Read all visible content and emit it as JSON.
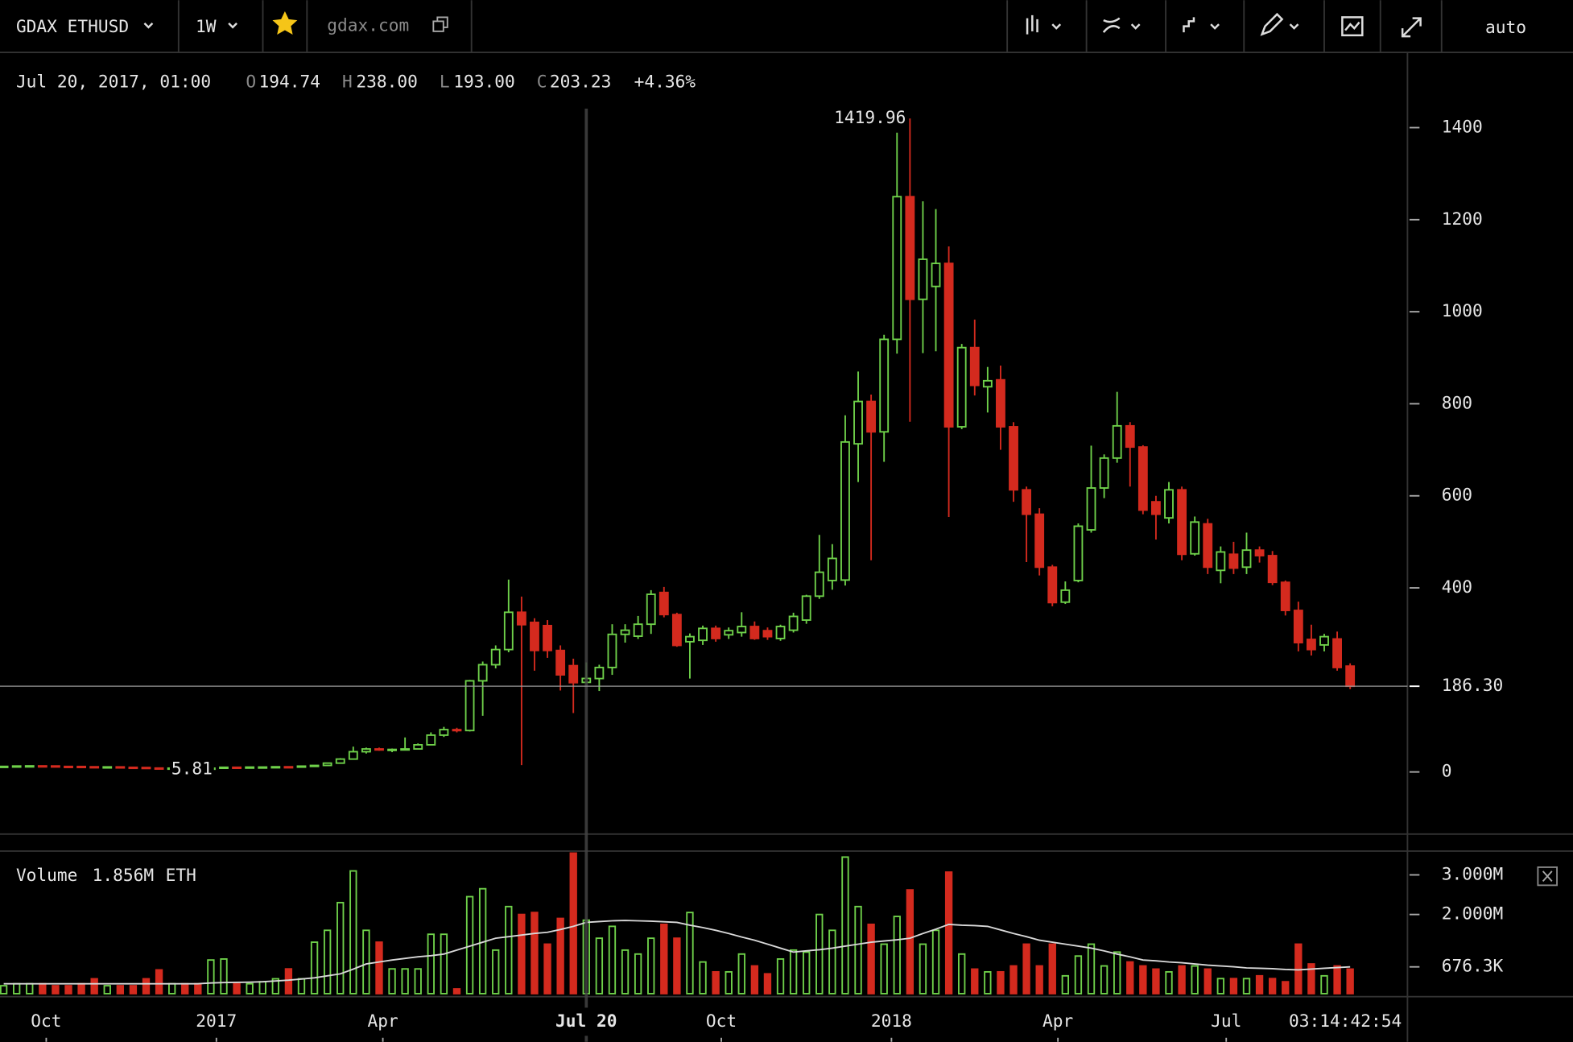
{
  "toolbar": {
    "symbol": "GDAX ETHUSD",
    "interval": "1W",
    "source": "gdax.com",
    "scale_mode": "auto"
  },
  "header": {
    "date": "Jul 20, 2017, 01:00",
    "open_key": "O",
    "open": "194.74",
    "high_key": "H",
    "high": "238.00",
    "low_key": "L",
    "low": "193.00",
    "close_key": "C",
    "close": "203.23",
    "change": "+4.36%"
  },
  "time_axis": {
    "countdown": "03:14:42:54"
  },
  "chart_data": [
    {
      "type": "candlestick",
      "up_color": "#6fd14a",
      "down_color": "#d42a1e",
      "x": [
        "2016-09-08",
        "2016-09-15",
        "2016-09-22",
        "2016-09-29",
        "2016-10-06",
        "2016-10-13",
        "2016-10-20",
        "2016-10-27",
        "2016-11-03",
        "2016-11-10",
        "2016-11-17",
        "2016-11-24",
        "2016-12-01",
        "2016-12-08",
        "2016-12-15",
        "2016-12-22",
        "2016-12-29",
        "2017-01-05",
        "2017-01-12",
        "2017-01-19",
        "2017-01-26",
        "2017-02-02",
        "2017-02-09",
        "2017-02-16",
        "2017-02-23",
        "2017-03-02",
        "2017-03-09",
        "2017-03-16",
        "2017-03-23",
        "2017-03-30",
        "2017-04-06",
        "2017-04-13",
        "2017-04-20",
        "2017-04-27",
        "2017-05-04",
        "2017-05-11",
        "2017-05-18",
        "2017-05-25",
        "2017-06-01",
        "2017-06-08",
        "2017-06-15",
        "2017-06-22",
        "2017-06-29",
        "2017-07-06",
        "2017-07-13",
        "2017-07-20",
        "2017-07-27",
        "2017-08-03",
        "2017-08-10",
        "2017-08-17",
        "2017-08-24",
        "2017-08-31",
        "2017-09-07",
        "2017-09-14",
        "2017-09-21",
        "2017-09-28",
        "2017-10-05",
        "2017-10-12",
        "2017-10-19",
        "2017-10-26",
        "2017-11-02",
        "2017-11-09",
        "2017-11-16",
        "2017-11-23",
        "2017-11-30",
        "2017-12-07",
        "2017-12-14",
        "2017-12-21",
        "2017-12-28",
        "2018-01-04",
        "2018-01-11",
        "2018-01-18",
        "2018-01-25",
        "2018-02-01",
        "2018-02-08",
        "2018-02-15",
        "2018-02-22",
        "2018-03-01",
        "2018-03-08",
        "2018-03-15",
        "2018-03-22",
        "2018-03-29",
        "2018-04-05",
        "2018-04-12",
        "2018-04-19",
        "2018-04-26",
        "2018-05-03",
        "2018-05-10",
        "2018-05-17",
        "2018-05-24",
        "2018-05-31",
        "2018-06-07",
        "2018-06-14",
        "2018-06-21",
        "2018-06-28",
        "2018-07-05",
        "2018-07-12",
        "2018-07-19",
        "2018-07-26",
        "2018-08-02",
        "2018-08-09",
        "2018-08-16",
        "2018-08-23",
        "2018-08-30",
        "2018-09-06"
      ],
      "open": [
        11.9,
        12.1,
        12.9,
        13.2,
        13.0,
        12.0,
        11.9,
        11.3,
        10.8,
        11.0,
        10.1,
        9.7,
        8.5,
        7.8,
        8.3,
        7.4,
        7.2,
        8.2,
        10.2,
        9.8,
        10.6,
        10.7,
        11.3,
        11.0,
        12.7,
        14.2,
        19.2,
        28,
        44,
        50,
        48,
        49,
        50,
        59,
        80,
        92,
        90,
        198,
        233,
        266,
        347,
        325,
        318,
        264,
        231,
        194.74,
        203,
        227,
        299,
        295,
        321,
        390,
        342,
        283,
        286,
        312,
        298,
        303,
        316,
        307,
        290,
        308,
        330,
        382,
        416,
        417,
        713,
        805,
        739,
        940,
        1250,
        1027,
        1055,
        1105,
        750,
        922,
        837,
        852,
        750,
        613,
        560,
        445,
        369,
        416,
        526,
        617,
        682,
        752,
        706,
        587,
        552,
        613,
        474,
        539,
        438,
        473,
        445,
        482,
        470,
        412,
        351,
        288,
        276,
        289,
        230
      ],
      "high": [
        12.3,
        13.0,
        13.5,
        13.4,
        13.1,
        12.1,
        12.0,
        11.4,
        11.2,
        11.1,
        10.2,
        9.8,
        8.6,
        8.5,
        8.4,
        7.6,
        8.4,
        11.0,
        10.3,
        10.9,
        10.8,
        11.5,
        11.4,
        13.0,
        14.5,
        19.8,
        30,
        55,
        53,
        53,
        51,
        75,
        62,
        86,
        98,
        96,
        200,
        240,
        275,
        418,
        381,
        334,
        330,
        275,
        246,
        238,
        233,
        321,
        321,
        339,
        395,
        402,
        346,
        301,
        318,
        318,
        314,
        347,
        327,
        314,
        320,
        346,
        385,
        515,
        495,
        775,
        870,
        820,
        950,
        1389,
        1419.96,
        1240,
        1223,
        1142,
        930,
        983,
        880,
        883,
        760,
        620,
        573,
        450,
        414,
        540,
        709,
        690,
        826,
        760,
        710,
        600,
        630,
        620,
        555,
        550,
        490,
        500,
        520,
        490,
        480,
        416,
        370,
        320,
        300,
        305,
        236
      ],
      "low": [
        11.5,
        12.0,
        12.6,
        12.8,
        11.8,
        11.7,
        11.0,
        10.5,
        10.5,
        9.9,
        9.5,
        8.2,
        7.3,
        7.5,
        7.2,
        5.81,
        7.0,
        8.0,
        9.6,
        9.7,
        10.4,
        10.6,
        10.8,
        10.9,
        12.5,
        14.0,
        18.8,
        27,
        40,
        46,
        43,
        47,
        49,
        58,
        76,
        86,
        88,
        122,
        225,
        260,
        15,
        220,
        248,
        177,
        128,
        193,
        176,
        211,
        281,
        289,
        300,
        336,
        272,
        203,
        276,
        283,
        289,
        294,
        287,
        287,
        285,
        303,
        322,
        376,
        396,
        405,
        630,
        460,
        674,
        909,
        761,
        910,
        914,
        554,
        745,
        818,
        781,
        700,
        587,
        456,
        427,
        360,
        365,
        412,
        520,
        595,
        672,
        620,
        560,
        505,
        540,
        460,
        470,
        430,
        410,
        430,
        430,
        455,
        406,
        340,
        262,
        253,
        262,
        220,
        180
      ],
      "close": [
        12.1,
        12.9,
        13.2,
        13.0,
        12.0,
        11.9,
        11.3,
        10.9,
        11.0,
        10.1,
        9.7,
        8.5,
        7.8,
        8.3,
        7.4,
        7.2,
        8.2,
        10.2,
        9.8,
        10.6,
        10.7,
        11.3,
        11.0,
        12.7,
        14.2,
        19.2,
        28,
        44,
        50,
        48,
        49,
        50,
        59,
        80,
        92,
        90,
        198,
        233,
        266,
        347,
        320,
        264,
        264,
        211,
        194,
        203.23,
        227,
        299,
        308,
        321,
        386,
        342,
        275,
        294,
        312,
        290,
        307,
        316,
        290,
        294,
        316,
        338,
        382,
        434,
        464,
        717,
        805,
        739,
        940,
        1250,
        1027,
        1114,
        1105,
        750,
        922,
        840,
        850,
        750,
        613,
        560,
        445,
        368,
        395,
        534,
        617,
        682,
        752,
        706,
        569,
        560,
        613,
        473,
        543,
        445,
        478,
        443,
        482,
        470,
        412,
        351,
        281,
        266,
        294,
        227,
        186.3
      ],
      "xlim": [
        "2016-09-06",
        "2018-10-07"
      ],
      "xticks": [
        {
          "value": "2016-10-01",
          "label": "Oct"
        },
        {
          "value": "2017-01-01",
          "label": "2017"
        },
        {
          "value": "2017-04-01",
          "label": "Apr"
        },
        {
          "value": "2017-10-01",
          "label": "Oct"
        },
        {
          "value": "2018-01-01",
          "label": "2018"
        },
        {
          "value": "2018-04-01",
          "label": "Apr"
        },
        {
          "value": "2018-07-01",
          "label": "Jul"
        }
      ],
      "ylim": [
        -135,
        1557
      ],
      "yticks": [
        0,
        400,
        600,
        800,
        1000,
        1200,
        1400
      ],
      "crosshair": {
        "x": "2017-07-20",
        "x_label": "Jul 20",
        "y": {
          "value": 186.3,
          "label": "186.30"
        }
      }
    },
    {
      "type": "bar",
      "title": "Volume",
      "current": "1.856M",
      "unit": "ETH",
      "ma_color": "#d8d8d8",
      "values": [
        200000,
        250000,
        250000,
        250000,
        200000,
        200000,
        250000,
        375000,
        200000,
        200000,
        200000,
        375000,
        600000,
        250000,
        250000,
        250000,
        850000,
        875000,
        250000,
        250000,
        300000,
        375000,
        625000,
        375000,
        1300000,
        1600000,
        2300000,
        3100000,
        1600000,
        1300000,
        625000,
        625000,
        625000,
        1500000,
        1500000,
        120000,
        2450000,
        2650000,
        1100000,
        2200000,
        2000000,
        2050000,
        1250000,
        1900000,
        3550000,
        1856000,
        1400000,
        1700000,
        1100000,
        1000000,
        1400000,
        1750000,
        1400000,
        2050000,
        800000,
        550000,
        550000,
        1000000,
        700000,
        500000,
        875000,
        1100000,
        1050000,
        2000000,
        1600000,
        3450000,
        2200000,
        1750000,
        1250000,
        1950000,
        2620000,
        1250000,
        1600000,
        3070000,
        1000000,
        620000,
        550000,
        550000,
        700000,
        1250000,
        700000,
        1250000,
        450000,
        950000,
        1250000,
        700000,
        1050000,
        800000,
        700000,
        620000,
        550000,
        700000,
        700000,
        620000,
        380000,
        380000,
        380000,
        450000,
        380000,
        300000,
        1250000,
        750000,
        450000,
        700000,
        620000
      ],
      "volume_ma": [
        250000,
        250000,
        250000,
        250000,
        250000,
        250000,
        250000,
        250000,
        250000,
        250000,
        250000,
        250000,
        250000,
        250000,
        250000,
        250000,
        270000,
        280000,
        285000,
        290000,
        300000,
        320000,
        340000,
        370000,
        400000,
        450000,
        500000,
        620000,
        750000,
        800000,
        850000,
        890000,
        930000,
        960000,
        1000000,
        1100000,
        1200000,
        1300000,
        1400000,
        1440000,
        1480000,
        1520000,
        1550000,
        1620000,
        1700000,
        1800000,
        1820000,
        1840000,
        1850000,
        1840000,
        1830000,
        1815000,
        1800000,
        1730000,
        1670000,
        1600000,
        1520000,
        1430000,
        1350000,
        1250000,
        1150000,
        1050000,
        1080000,
        1110000,
        1150000,
        1200000,
        1250000,
        1300000,
        1330000,
        1360000,
        1400000,
        1520000,
        1630000,
        1750000,
        1730000,
        1720000,
        1700000,
        1610000,
        1520000,
        1440000,
        1350000,
        1300000,
        1250000,
        1200000,
        1150000,
        1080000,
        1000000,
        930000,
        850000,
        830000,
        800000,
        780000,
        750000,
        720000,
        700000,
        680000,
        650000,
        640000,
        630000,
        610000,
        600000,
        620000,
        640000,
        660000,
        676300
      ],
      "ma_label": {
        "value": 676300,
        "label": "676.3K"
      },
      "ylim": [
        0,
        3600000
      ],
      "yticks": [
        {
          "value": 3000000,
          "label": "3.000M"
        },
        {
          "value": 2000000,
          "label": "2.000M"
        }
      ]
    }
  ]
}
